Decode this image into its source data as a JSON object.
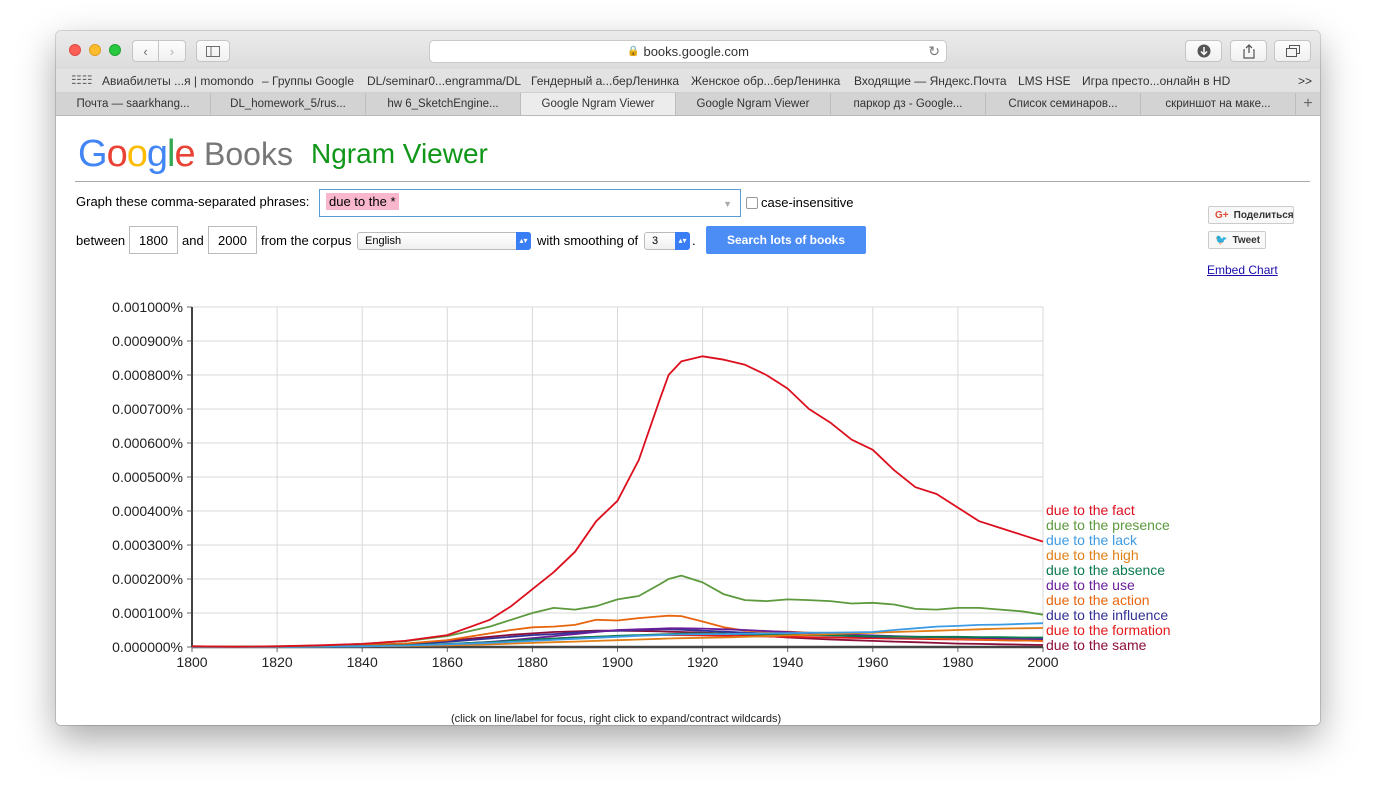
{
  "browser": {
    "url": "books.google.com",
    "bookmarks": [
      "Авиабилеты ...я | momondo",
      "– Группы Google",
      "DL/seminar0...engramma/DL",
      "Гендерный а...берЛенинка",
      "Женское обр...берЛенинка",
      "Входящие — Яндекс.Почта",
      "LMS HSE",
      "Игра престо...онлайн в HD"
    ],
    "bookmarks_more": ">>",
    "tabs": [
      {
        "label": "Почта — saarkhang..."
      },
      {
        "label": "DL_homework_5/rus..."
      },
      {
        "label": "hw 6_SketchEngine..."
      },
      {
        "label": "Google Ngram Viewer",
        "active": true
      },
      {
        "label": "Google Ngram Viewer"
      },
      {
        "label": "паркор дз - Google..."
      },
      {
        "label": "Список семинаров..."
      },
      {
        "label": "скриншот на маке..."
      }
    ],
    "tab_add": "+"
  },
  "header": {
    "logo_letters": [
      "G",
      "o",
      "o",
      "g",
      "l",
      "e"
    ],
    "books": "Books",
    "product": "Ngram Viewer"
  },
  "form": {
    "graph_label": "Graph these comma-separated phrases:",
    "phrase_value": "due to the *",
    "case_insensitive_label": "case-insensitive",
    "between_label": "between",
    "start_year": "1800",
    "and_label": "and",
    "end_year": "2000",
    "corpus_label": "from the corpus",
    "corpus_value": "English",
    "smoothing_label": "with smoothing of",
    "smoothing_value": "3",
    "period": ".",
    "search_button": "Search lots of books"
  },
  "sidebar": {
    "share_label": "Поделиться",
    "tweet_label": "Tweet",
    "embed_label": "Embed Chart"
  },
  "hint": "(click on line/label for focus, right click to expand/contract wildcards)",
  "chart_data": {
    "type": "line",
    "x": [
      1800,
      1810,
      1820,
      1830,
      1840,
      1850,
      1860,
      1870,
      1875,
      1880,
      1885,
      1890,
      1895,
      1900,
      1905,
      1910,
      1912,
      1915,
      1920,
      1925,
      1930,
      1935,
      1940,
      1945,
      1950,
      1955,
      1960,
      1965,
      1970,
      1975,
      1980,
      1985,
      1990,
      1995,
      2000
    ],
    "xlim": [
      1800,
      2000
    ],
    "ylim": [
      0,
      0.001
    ],
    "xticks": [
      "1800",
      "1820",
      "1840",
      "1860",
      "1880",
      "1900",
      "1920",
      "1940",
      "1960",
      "1980",
      "2000"
    ],
    "yticks": [
      "0.000000%",
      "0.000100%",
      "0.000200%",
      "0.000300%",
      "0.000400%",
      "0.000500%",
      "0.000600%",
      "0.000700%",
      "0.000800%",
      "0.000900%",
      "0.001000%"
    ],
    "grid": true,
    "legend_position": "right (labels at line ends)",
    "series": [
      {
        "name": "due to the fact",
        "color": "#dc0f1e",
        "values": [
          2e-06,
          1e-06,
          2e-06,
          5e-06,
          9e-06,
          1.8e-05,
          3.5e-05,
          8e-05,
          0.00012,
          0.00017,
          0.00022,
          0.00028,
          0.00037,
          0.00043,
          0.00055,
          0.00073,
          0.0008,
          0.00084,
          0.000855,
          0.000845,
          0.00083,
          0.0008,
          0.00076,
          0.0007,
          0.00066,
          0.00061,
          0.00058,
          0.00052,
          0.00047,
          0.00045,
          0.00041,
          0.00037,
          0.00035,
          0.00033,
          0.00031
        ]
      },
      {
        "name": "due to the presence",
        "color": "#5c9a3d",
        "values": [
          2e-06,
          1e-06,
          2e-06,
          4e-06,
          9e-06,
          1.7e-05,
          3.2e-05,
          6e-05,
          8e-05,
          0.0001,
          0.000115,
          0.00011,
          0.00012,
          0.00014,
          0.00015,
          0.000185,
          0.0002,
          0.00021,
          0.00019,
          0.000155,
          0.000138,
          0.000135,
          0.00014,
          0.000138,
          0.000135,
          0.000128,
          0.00013,
          0.000125,
          0.000112,
          0.00011,
          0.000115,
          0.000115,
          0.00011,
          0.000105,
          9.5e-05
        ]
      },
      {
        "name": "due to the lack",
        "color": "#3d9be3",
        "values": [
          0,
          0,
          0,
          1e-06,
          2e-06,
          4e-06,
          8e-06,
          1.2e-05,
          1.5e-05,
          1.8e-05,
          2.1e-05,
          2.4e-05,
          2.7e-05,
          3e-05,
          3.3e-05,
          3.5e-05,
          3.6e-05,
          3.7e-05,
          3.8e-05,
          3.8e-05,
          3.9e-05,
          4e-05,
          4.1e-05,
          4.2e-05,
          4.2e-05,
          4.3e-05,
          4.4e-05,
          5e-05,
          5.5e-05,
          6e-05,
          6.2e-05,
          6.5e-05,
          6.6e-05,
          6.8e-05,
          7e-05
        ]
      },
      {
        "name": "due to the high",
        "color": "#e07f16",
        "values": [
          0,
          0,
          0,
          1e-06,
          2e-06,
          3e-06,
          5e-06,
          8e-06,
          1e-05,
          1.2e-05,
          1.4e-05,
          1.6e-05,
          1.8e-05,
          2e-05,
          2.2e-05,
          2.4e-05,
          2.5e-05,
          2.6e-05,
          2.7e-05,
          2.8e-05,
          3e-05,
          3.2e-05,
          3.4e-05,
          3.6e-05,
          3.8e-05,
          4e-05,
          4.2e-05,
          4.4e-05,
          4.6e-05,
          4.8e-05,
          5e-05,
          5.2e-05,
          5.4e-05,
          5.5e-05,
          5.6e-05
        ]
      },
      {
        "name": "due to the absence",
        "color": "#0a7a4f",
        "values": [
          0,
          0,
          0,
          1e-06,
          3e-06,
          5e-06,
          9e-06,
          1.4e-05,
          1.8e-05,
          2.2e-05,
          2.5e-05,
          2.8e-05,
          3e-05,
          3.3e-05,
          3.5e-05,
          3.7e-05,
          3.8e-05,
          3.9e-05,
          4e-05,
          3.9e-05,
          3.8e-05,
          3.7e-05,
          3.6e-05,
          3.5e-05,
          3.4e-05,
          3.3e-05,
          3.2e-05,
          3.1e-05,
          3e-05,
          3e-05,
          3e-05,
          2.9e-05,
          2.9e-05,
          2.8e-05,
          2.8e-05
        ]
      },
      {
        "name": "due to the use",
        "color": "#6a1e9a",
        "values": [
          0,
          0,
          0,
          1e-06,
          2e-06,
          4e-06,
          8e-06,
          1.5e-05,
          2e-05,
          2.6e-05,
          3.2e-05,
          3.8e-05,
          4.4e-05,
          5e-05,
          5.2e-05,
          5.4e-05,
          5.5e-05,
          5.5e-05,
          5.4e-05,
          5.2e-05,
          5e-05,
          4.7e-05,
          4.4e-05,
          4.1e-05,
          3.8e-05,
          3.6e-05,
          3.4e-05,
          3.2e-05,
          3e-05,
          2.9e-05,
          2.8e-05,
          2.7e-05,
          2.6e-05,
          2.5e-05,
          2.4e-05
        ]
      },
      {
        "name": "due to the action",
        "color": "#e8650d",
        "values": [
          1e-06,
          0,
          1e-06,
          2e-06,
          5e-06,
          1e-05,
          2e-05,
          4e-05,
          5e-05,
          5.8e-05,
          6e-05,
          6.5e-05,
          8e-05,
          7.8e-05,
          8.5e-05,
          9e-05,
          9.2e-05,
          9.1e-05,
          7.5e-05,
          5.8e-05,
          4.8e-05,
          4.5e-05,
          4.5e-05,
          4.2e-05,
          3.8e-05,
          3.5e-05,
          3.2e-05,
          3e-05,
          2.8e-05,
          2.6e-05,
          2.4e-05,
          2.2e-05,
          2e-05,
          1.9e-05,
          1.8e-05
        ]
      },
      {
        "name": "due to the influence",
        "color": "#323296",
        "values": [
          1e-06,
          0,
          1e-06,
          2e-06,
          4e-06,
          8e-06,
          1.5e-05,
          2.5e-05,
          3e-05,
          3.5e-05,
          3.8e-05,
          4.2e-05,
          4.6e-05,
          4.8e-05,
          5e-05,
          5.2e-05,
          5.2e-05,
          5.1e-05,
          4.8e-05,
          4.5e-05,
          4.2e-05,
          4e-05,
          3.8e-05,
          3.6e-05,
          3.4e-05,
          3.2e-05,
          3e-05,
          2.8e-05,
          2.7e-05,
          2.6e-05,
          2.5e-05,
          2.4e-05,
          2.3e-05,
          2.2e-05,
          2.1e-05
        ]
      },
      {
        "name": "due to the formation",
        "color": "#e51b1b",
        "values": [
          0,
          0,
          0,
          1e-06,
          2e-06,
          4e-06,
          8e-06,
          1.4e-05,
          1.8e-05,
          2.2e-05,
          2.5e-05,
          2.8e-05,
          3e-05,
          3.2e-05,
          3.4e-05,
          3.5e-05,
          3.5e-05,
          3.5e-05,
          3.4e-05,
          3.3e-05,
          3.2e-05,
          3.1e-05,
          3e-05,
          2.9e-05,
          2.8e-05,
          2.7e-05,
          2.6e-05,
          2.5e-05,
          2.4e-05,
          2.3e-05,
          2.2e-05,
          2.1e-05,
          2e-05,
          1.9e-05,
          1.8e-05
        ]
      },
      {
        "name": "due to the same",
        "color": "#8c0f3a",
        "values": [
          1e-06,
          0,
          1e-06,
          3e-06,
          6e-06,
          1e-05,
          1.8e-05,
          3e-05,
          3.6e-05,
          4e-05,
          4.4e-05,
          4.6e-05,
          4.8e-05,
          4.8e-05,
          4.7e-05,
          4.6e-05,
          4.5e-05,
          4.4e-05,
          4.2e-05,
          4e-05,
          3.6e-05,
          3.2e-05,
          2.8e-05,
          2.5e-05,
          2.2e-05,
          2e-05,
          1.8e-05,
          1.6e-05,
          1.4e-05,
          1.2e-05,
          1e-05,
          9e-06,
          8e-06,
          7e-06,
          6e-06
        ]
      }
    ]
  }
}
